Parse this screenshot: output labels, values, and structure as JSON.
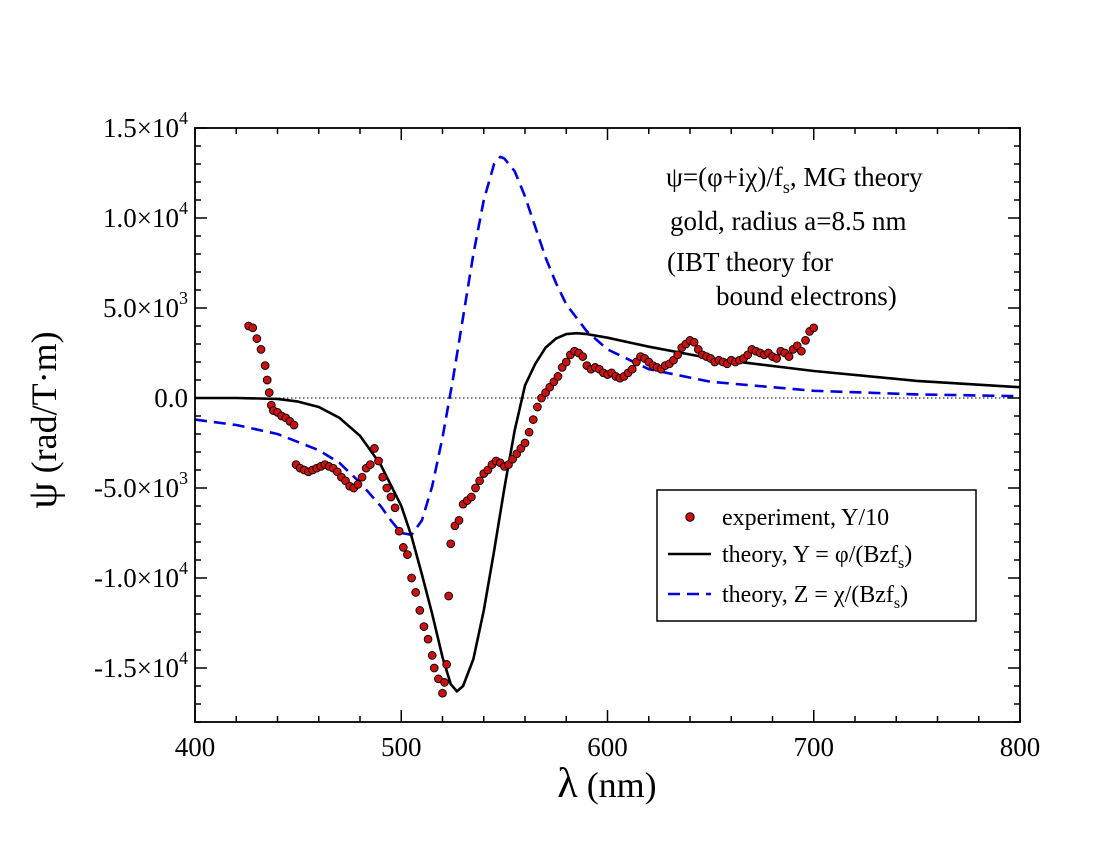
{
  "chart_data": {
    "type": "line",
    "xlabel": {
      "greek": "λ",
      "text": " (nm)"
    },
    "ylabel": {
      "greek": "ψ",
      "text": " (rad/T·m)"
    },
    "xlim": [
      400,
      800
    ],
    "ylim": [
      -18000,
      15000
    ],
    "x_ticks": [
      {
        "value": 400,
        "label": "400"
      },
      {
        "value": 500,
        "label": "500"
      },
      {
        "value": 600,
        "label": "600"
      },
      {
        "value": 700,
        "label": "700"
      },
      {
        "value": 800,
        "label": "800"
      }
    ],
    "y_ticks": [
      {
        "value": 15000,
        "mant": "1.5×10",
        "exp": "4"
      },
      {
        "value": 10000,
        "mant": "1.0×10",
        "exp": "4"
      },
      {
        "value": 5000,
        "mant": "5.0×10",
        "exp": "3"
      },
      {
        "value": 0,
        "mant": "0.0",
        "exp": ""
      },
      {
        "value": -5000,
        "mant": "-5.0×10",
        "exp": "3"
      },
      {
        "value": -10000,
        "mant": "-1.0×10",
        "exp": "4"
      },
      {
        "value": -15000,
        "mant": "-1.5×10",
        "exp": "4"
      }
    ],
    "zero_line": true,
    "annotations": {
      "formula": {
        "a": "ψ=(φ+iχ)/f",
        "sub": "s",
        "b": ", MG theory"
      },
      "line2": "gold, radius a=8.5 nm",
      "line3": "(IBT theory for",
      "line4": "bound electrons)"
    },
    "legend": {
      "position": "lower-right",
      "entries": [
        {
          "key": "experiment",
          "label": "experiment, Y/10"
        },
        {
          "key": "theory_y",
          "label_a": "theory, Y = φ/(Bzf",
          "label_sub": "s",
          "label_b": ")"
        },
        {
          "key": "theory_z",
          "label_a": "theory, Z = χ/(Bzf",
          "label_sub": "s",
          "label_b": ")"
        }
      ]
    },
    "series": [
      {
        "name": "theory, Y = φ/(Bzf_s)",
        "style": "solid",
        "color": "#000000",
        "points": [
          [
            400,
            0
          ],
          [
            420,
            0
          ],
          [
            440,
            -50
          ],
          [
            450,
            -200
          ],
          [
            460,
            -500
          ],
          [
            470,
            -1100
          ],
          [
            480,
            -2100
          ],
          [
            490,
            -3700
          ],
          [
            500,
            -6000
          ],
          [
            505,
            -7700
          ],
          [
            510,
            -9800
          ],
          [
            515,
            -12000
          ],
          [
            520,
            -14400
          ],
          [
            524,
            -15900
          ],
          [
            527,
            -16300
          ],
          [
            530,
            -16000
          ],
          [
            535,
            -14500
          ],
          [
            540,
            -11800
          ],
          [
            545,
            -8500
          ],
          [
            550,
            -5000
          ],
          [
            555,
            -1800
          ],
          [
            560,
            700
          ],
          [
            565,
            1900
          ],
          [
            570,
            2800
          ],
          [
            575,
            3300
          ],
          [
            580,
            3550
          ],
          [
            585,
            3600
          ],
          [
            590,
            3550
          ],
          [
            600,
            3350
          ],
          [
            620,
            2850
          ],
          [
            650,
            2200
          ],
          [
            700,
            1500
          ],
          [
            750,
            950
          ],
          [
            800,
            600
          ]
        ]
      },
      {
        "name": "theory, Z = χ/(Bzf_s)",
        "style": "dashed",
        "color": "#0000dd",
        "points": [
          [
            400,
            -1200
          ],
          [
            420,
            -1500
          ],
          [
            440,
            -2000
          ],
          [
            460,
            -2900
          ],
          [
            470,
            -3600
          ],
          [
            480,
            -4700
          ],
          [
            490,
            -6000
          ],
          [
            495,
            -6800
          ],
          [
            500,
            -7500
          ],
          [
            505,
            -7600
          ],
          [
            510,
            -6800
          ],
          [
            515,
            -4900
          ],
          [
            520,
            -2200
          ],
          [
            525,
            1000
          ],
          [
            530,
            4500
          ],
          [
            535,
            8000
          ],
          [
            540,
            11000
          ],
          [
            545,
            13000
          ],
          [
            548,
            13400
          ],
          [
            550,
            13300
          ],
          [
            555,
            12600
          ],
          [
            560,
            11200
          ],
          [
            565,
            9500
          ],
          [
            570,
            7800
          ],
          [
            575,
            6400
          ],
          [
            580,
            5200
          ],
          [
            590,
            3700
          ],
          [
            600,
            2700
          ],
          [
            620,
            1600
          ],
          [
            650,
            900
          ],
          [
            700,
            400
          ],
          [
            750,
            200
          ],
          [
            800,
            100
          ]
        ]
      },
      {
        "name": "experiment, Y/10",
        "style": "markers",
        "color": "#cc1111",
        "points": [
          [
            426,
            4000
          ],
          [
            428,
            3900
          ],
          [
            430,
            3300
          ],
          [
            432,
            2700
          ],
          [
            434,
            1800
          ],
          [
            435,
            1000
          ],
          [
            436,
            300
          ],
          [
            437,
            -400
          ],
          [
            438,
            -700
          ],
          [
            440,
            -800
          ],
          [
            442,
            -1000
          ],
          [
            444,
            -1100
          ],
          [
            446,
            -1300
          ],
          [
            448,
            -1500
          ],
          [
            449,
            -3700
          ],
          [
            451,
            -3900
          ],
          [
            453,
            -4000
          ],
          [
            455,
            -4100
          ],
          [
            457,
            -4000
          ],
          [
            459,
            -3900
          ],
          [
            461,
            -3800
          ],
          [
            463,
            -3700
          ],
          [
            465,
            -3800
          ],
          [
            467,
            -3900
          ],
          [
            469,
            -4100
          ],
          [
            471,
            -4400
          ],
          [
            473,
            -4600
          ],
          [
            475,
            -4900
          ],
          [
            477,
            -5000
          ],
          [
            479,
            -4800
          ],
          [
            481,
            -4400
          ],
          [
            483,
            -3900
          ],
          [
            485,
            -3700
          ],
          [
            487,
            -2800
          ],
          [
            489,
            -3500
          ],
          [
            491,
            -4400
          ],
          [
            493,
            -5000
          ],
          [
            495,
            -5500
          ],
          [
            497,
            -6100
          ],
          [
            499,
            -7400
          ],
          [
            501,
            -8300
          ],
          [
            503,
            -8700
          ],
          [
            505,
            -10000
          ],
          [
            507,
            -10800
          ],
          [
            509,
            -11800
          ],
          [
            511,
            -12700
          ],
          [
            513,
            -13400
          ],
          [
            515,
            -14300
          ],
          [
            516,
            -15000
          ],
          [
            518,
            -15600
          ],
          [
            520,
            -16400
          ],
          [
            521,
            -15800
          ],
          [
            522,
            -14800
          ],
          [
            523,
            -11000
          ],
          [
            524,
            -8100
          ],
          [
            526,
            -7100
          ],
          [
            528,
            -6800
          ],
          [
            530,
            -5900
          ],
          [
            532,
            -5700
          ],
          [
            534,
            -5500
          ],
          [
            536,
            -5000
          ],
          [
            538,
            -4600
          ],
          [
            540,
            -4200
          ],
          [
            542,
            -4000
          ],
          [
            544,
            -3700
          ],
          [
            546,
            -3500
          ],
          [
            548,
            -3600
          ],
          [
            550,
            -3800
          ],
          [
            552,
            -3700
          ],
          [
            554,
            -3400
          ],
          [
            556,
            -3100
          ],
          [
            558,
            -2800
          ],
          [
            560,
            -2500
          ],
          [
            562,
            -1900
          ],
          [
            564,
            -1200
          ],
          [
            566,
            -500
          ],
          [
            568,
            0
          ],
          [
            570,
            300
          ],
          [
            572,
            600
          ],
          [
            574,
            900
          ],
          [
            576,
            1200
          ],
          [
            578,
            1700
          ],
          [
            580,
            2000
          ],
          [
            582,
            2400
          ],
          [
            584,
            2600
          ],
          [
            586,
            2500
          ],
          [
            588,
            2300
          ],
          [
            590,
            1800
          ],
          [
            592,
            1600
          ],
          [
            594,
            1700
          ],
          [
            596,
            1600
          ],
          [
            598,
            1400
          ],
          [
            600,
            1300
          ],
          [
            602,
            1400
          ],
          [
            604,
            1200
          ],
          [
            606,
            1100
          ],
          [
            608,
            1200
          ],
          [
            610,
            1400
          ],
          [
            612,
            1600
          ],
          [
            614,
            2000
          ],
          [
            616,
            2300
          ],
          [
            618,
            2200
          ],
          [
            620,
            2000
          ],
          [
            622,
            1800
          ],
          [
            624,
            1700
          ],
          [
            626,
            1600
          ],
          [
            628,
            1800
          ],
          [
            630,
            1900
          ],
          [
            632,
            2100
          ],
          [
            634,
            2400
          ],
          [
            636,
            2800
          ],
          [
            638,
            3000
          ],
          [
            640,
            3200
          ],
          [
            642,
            3100
          ],
          [
            644,
            2700
          ],
          [
            646,
            2400
          ],
          [
            648,
            2300
          ],
          [
            650,
            2200
          ],
          [
            652,
            2000
          ],
          [
            654,
            2100
          ],
          [
            656,
            2000
          ],
          [
            658,
            1900
          ],
          [
            660,
            2100
          ],
          [
            662,
            2000
          ],
          [
            664,
            2100
          ],
          [
            666,
            2200
          ],
          [
            668,
            2400
          ],
          [
            670,
            2700
          ],
          [
            672,
            2600
          ],
          [
            674,
            2500
          ],
          [
            676,
            2400
          ],
          [
            678,
            2500
          ],
          [
            680,
            2300
          ],
          [
            682,
            2200
          ],
          [
            684,
            2600
          ],
          [
            686,
            2500
          ],
          [
            688,
            2300
          ],
          [
            690,
            2700
          ],
          [
            692,
            2900
          ],
          [
            694,
            2600
          ],
          [
            696,
            3200
          ],
          [
            698,
            3700
          ],
          [
            700,
            3900
          ]
        ]
      }
    ]
  },
  "colors": {
    "experiment_fill": "#cc1111",
    "experiment_stroke": "#000000",
    "theory_y": "#000000",
    "theory_z": "#0000dd",
    "zero_line": "#000000"
  }
}
